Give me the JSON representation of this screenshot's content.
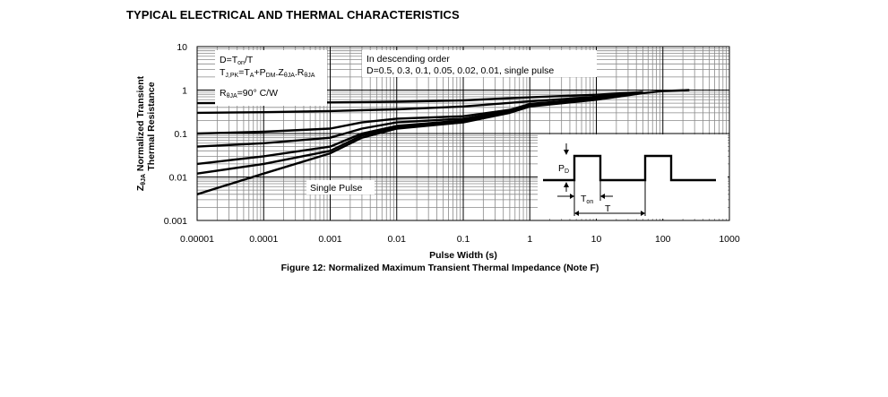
{
  "page": {
    "heading": "TYPICAL ELECTRICAL AND THERMAL CHARACTERISTICS"
  },
  "chart_data": {
    "type": "line",
    "title": "Figure 12: Normalized Maximum Transient Thermal Impedance (Note F)",
    "xlabel": "Pulse Width (s)",
    "ylabel_main": "Normalized Transient",
    "ylabel_sub": "Thermal Resistance",
    "ylabel_symbol": "Z",
    "ylabel_symbol_sub": "θJA",
    "xscale": "log",
    "yscale": "log",
    "xlim": [
      1e-05,
      1000
    ],
    "ylim": [
      0.001,
      10
    ],
    "grid": true,
    "x_tick_labels": [
      "0.00001",
      "0.0001",
      "0.001",
      "0.01",
      "0.1",
      "1",
      "10",
      "100",
      "1000"
    ],
    "y_tick_labels": [
      "0.001",
      "0.01",
      "0.1",
      "1",
      "10"
    ],
    "annotations": {
      "formula_1": "D=T",
      "formula_1_sub": "on",
      "formula_1_tail": "/T",
      "formula_2_a": "T",
      "formula_2_a_sub": "J,PK",
      "formula_2_b": "=T",
      "formula_2_b_sub": "A",
      "formula_2_c": "+P",
      "formula_2_c_sub": "DM",
      "formula_2_d": ".Z",
      "formula_2_d_sub": "θJA",
      "formula_2_e": ".R",
      "formula_2_e_sub": "θJA",
      "formula_3_a": "R",
      "formula_3_a_sub": "θJA",
      "formula_3_b": "=90°  C/W",
      "order_line_1": "In descending order",
      "order_line_2": "D=0.5, 0.3, 0.1, 0.05, 0.02, 0.01, single pulse",
      "single_pulse_label": "Single Pulse",
      "pulse_pd": "P",
      "pulse_pd_sub": "D",
      "pulse_ton": "T",
      "pulse_ton_sub": "on",
      "pulse_t": "T"
    },
    "series": [
      {
        "name": "D=0.5",
        "x": [
          1e-05,
          0.0001,
          0.001,
          0.01,
          0.1,
          1,
          10,
          50
        ],
        "y": [
          0.5,
          0.51,
          0.52,
          0.54,
          0.58,
          0.68,
          0.78,
          0.9
        ]
      },
      {
        "name": "D=0.3",
        "x": [
          1e-05,
          0.0001,
          0.001,
          0.01,
          0.1,
          1,
          10,
          50
        ],
        "y": [
          0.3,
          0.31,
          0.33,
          0.36,
          0.42,
          0.55,
          0.7,
          0.9
        ]
      },
      {
        "name": "D=0.1",
        "x": [
          1e-05,
          0.0001,
          0.001,
          0.003,
          0.01,
          0.1,
          0.5,
          1,
          10,
          50
        ],
        "y": [
          0.1,
          0.11,
          0.13,
          0.18,
          0.22,
          0.25,
          0.35,
          0.48,
          0.65,
          0.9
        ]
      },
      {
        "name": "D=0.05",
        "x": [
          1e-05,
          0.0001,
          0.001,
          0.003,
          0.01,
          0.1,
          0.5,
          1,
          10,
          50
        ],
        "y": [
          0.05,
          0.06,
          0.08,
          0.13,
          0.18,
          0.22,
          0.33,
          0.46,
          0.63,
          0.9
        ]
      },
      {
        "name": "D=0.02",
        "x": [
          1e-05,
          0.0001,
          0.001,
          0.003,
          0.01,
          0.1,
          0.5,
          1,
          10,
          50
        ],
        "y": [
          0.02,
          0.03,
          0.05,
          0.1,
          0.15,
          0.2,
          0.32,
          0.45,
          0.62,
          0.9
        ]
      },
      {
        "name": "D=0.01",
        "x": [
          1e-05,
          0.0001,
          0.001,
          0.003,
          0.01,
          0.1,
          0.5,
          1,
          10,
          50
        ],
        "y": [
          0.012,
          0.02,
          0.04,
          0.09,
          0.14,
          0.19,
          0.31,
          0.44,
          0.61,
          0.9
        ]
      },
      {
        "name": "single pulse",
        "x": [
          1e-05,
          0.0001,
          0.001,
          0.003,
          0.01,
          0.1,
          0.5,
          1,
          10,
          50,
          100,
          250
        ],
        "y": [
          0.004,
          0.012,
          0.035,
          0.08,
          0.13,
          0.18,
          0.3,
          0.42,
          0.6,
          0.85,
          0.95,
          1.0
        ]
      }
    ]
  }
}
